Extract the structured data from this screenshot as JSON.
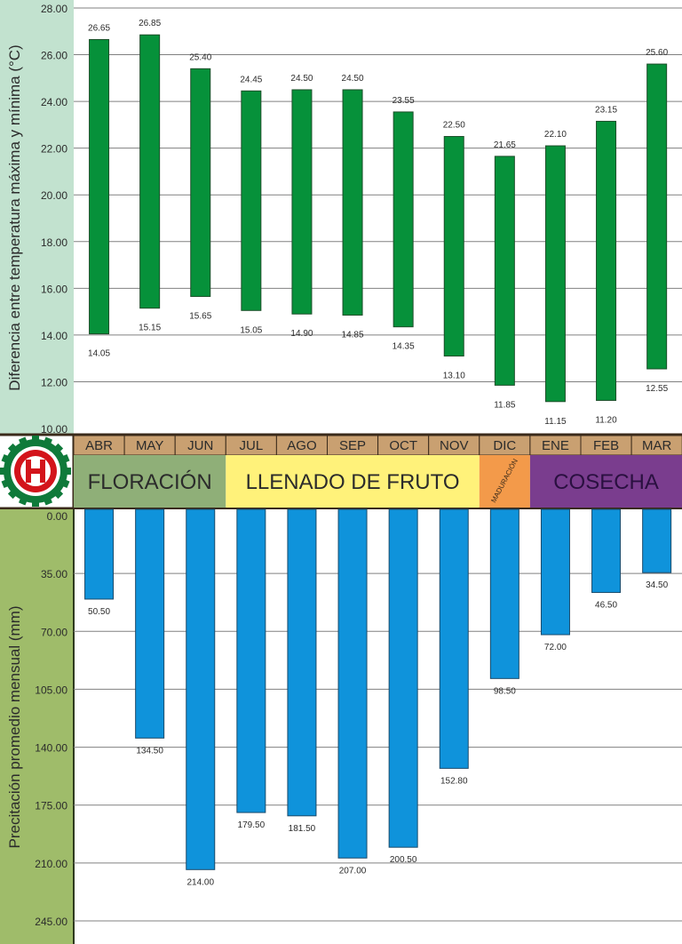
{
  "chart_data": [
    {
      "type": "bar",
      "subtype": "floating-range",
      "ylabel": "Diferencia entre temperatura máxima y mínima (°C)",
      "ylim": [
        10,
        28
      ],
      "yticks": [
        "10.00",
        "12.00",
        "14.00",
        "16.00",
        "18.00",
        "20.00",
        "22.00",
        "24.00",
        "26.00",
        "28.00"
      ],
      "grid": true,
      "bar_color": "#06913a",
      "categories": [
        "ABR",
        "MAY",
        "JUN",
        "JUL",
        "AGO",
        "SEP",
        "OCT",
        "NOV",
        "DIC",
        "ENE",
        "FEB",
        "MAR"
      ],
      "series": [
        {
          "values_max": [
            26.65,
            26.85,
            25.4,
            24.45,
            24.5,
            24.5,
            23.55,
            22.5,
            21.65,
            22.1,
            23.15,
            25.6
          ],
          "values_min": [
            14.05,
            15.15,
            15.65,
            15.05,
            14.9,
            14.85,
            14.35,
            13.1,
            11.85,
            11.15,
            11.2,
            12.55
          ]
        }
      ],
      "labels_max": [
        "26.65",
        "26.85",
        "25.40",
        "24.45",
        "24.50",
        "24.50",
        "23.55",
        "22.50",
        "21.65",
        "22.10",
        "23.15",
        "25.60"
      ],
      "labels_min": [
        "14.05",
        "15.15",
        "15.65",
        "15.05",
        "14.90",
        "14.85",
        "14.35",
        "13.10",
        "11.85",
        "11.15",
        "11.20",
        "12.55"
      ]
    },
    {
      "type": "bar",
      "orientation": "downward",
      "ylabel": "Precitación promedio mensual (mm)",
      "ylim": [
        0,
        245
      ],
      "yticks": [
        "0.00",
        "35.00",
        "70.00",
        "105.00",
        "140.00",
        "175.00",
        "210.00",
        "245.00"
      ],
      "grid": true,
      "bar_color": "#0f93db",
      "categories": [
        "ABR",
        "MAY",
        "JUN",
        "JUL",
        "AGO",
        "SEP",
        "OCT",
        "NOV",
        "DIC",
        "ENE",
        "FEB",
        "MAR"
      ],
      "values": [
        50.5,
        134.5,
        214.0,
        179.5,
        181.5,
        207.0,
        200.5,
        152.8,
        98.5,
        72.0,
        46.5,
        34.5
      ],
      "labels": [
        "50.50",
        "134.50",
        "214.00",
        "179.50",
        "181.50",
        "207.00",
        "200.50",
        "152.80",
        "98.50",
        "72.00",
        "46.50",
        "34.50"
      ]
    }
  ],
  "months": [
    "ABR",
    "MAY",
    "JUN",
    "JUL",
    "AGO",
    "SEP",
    "OCT",
    "NOV",
    "DIC",
    "ENE",
    "FEB",
    "MAR"
  ],
  "phases": [
    {
      "label": "FLORACIÓN",
      "color": "#8faf78"
    },
    {
      "label": "LLENADO DE FRUTO",
      "color": "#fff27a"
    },
    {
      "label": "MADURACIÓN",
      "color": "#f39a4a"
    },
    {
      "label": "COSECHA",
      "color": "#7a3d8e"
    }
  ],
  "colors": {
    "top_panel": "#c2e2cf",
    "bottom_panel": "#9fbc6a",
    "month_cell": "#c9a071",
    "bar_green": "#06913a",
    "bar_blue": "#0f93db",
    "logo_red": "#d3141b",
    "logo_green": "#0f7a3a"
  },
  "icons": [
    "logo-icon"
  ]
}
